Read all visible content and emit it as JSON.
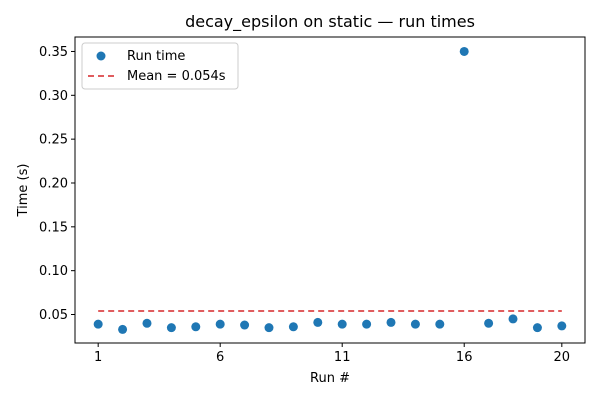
{
  "chart_data": {
    "type": "scatter",
    "title": "decay_epsilon on static — run times",
    "xlabel": "Run #",
    "ylabel": "Time (s)",
    "x_ticks": [
      1,
      6,
      11,
      16,
      20
    ],
    "y_ticks": [
      "0.05",
      "0.10",
      "0.15",
      "0.20",
      "0.25",
      "0.30",
      "0.35"
    ],
    "xlim": [
      0.05,
      20.95
    ],
    "ylim": [
      0.0175,
      0.3665
    ],
    "series": [
      {
        "name": "Run time",
        "color": "#1f77b4",
        "x": [
          1,
          2,
          3,
          4,
          5,
          6,
          7,
          8,
          9,
          10,
          11,
          12,
          13,
          14,
          15,
          16,
          17,
          18,
          19,
          20
        ],
        "y": [
          0.039,
          0.033,
          0.04,
          0.035,
          0.036,
          0.039,
          0.038,
          0.035,
          0.036,
          0.041,
          0.039,
          0.039,
          0.041,
          0.039,
          0.039,
          0.35,
          0.04,
          0.045,
          0.035,
          0.037
        ]
      }
    ],
    "mean_line": {
      "label": "Mean = 0.054s",
      "value": 0.054,
      "color": "#d62728",
      "x_range": [
        1,
        20
      ]
    },
    "legend": {
      "placement": "top-left"
    },
    "grid": false
  }
}
